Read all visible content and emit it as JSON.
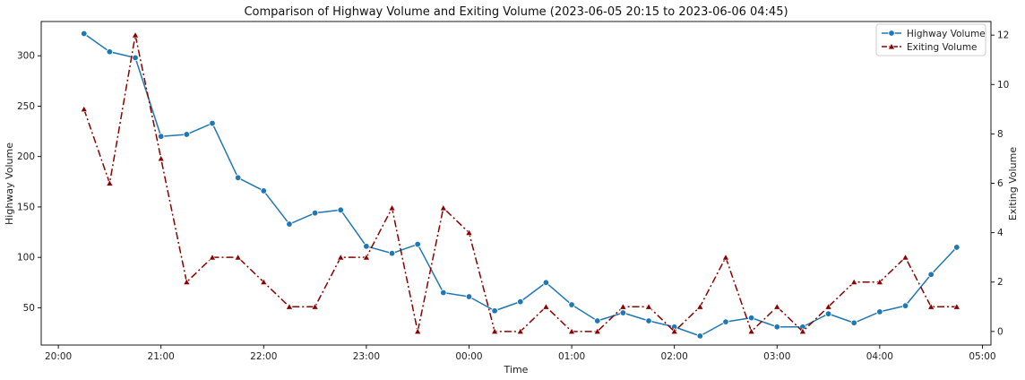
{
  "chart_data": {
    "type": "line",
    "title": "Comparison of Highway Volume and Exiting Volume (2023-06-05 20:15 to 2023-06-06 04:45)",
    "xlabel": "Time",
    "ylabel_left": "Highway Volume",
    "ylabel_right": "Exiting Volume",
    "x_ticks": [
      "20:00",
      "21:00",
      "22:00",
      "23:00",
      "00:00",
      "01:00",
      "02:00",
      "03:00",
      "04:00",
      "05:00"
    ],
    "y_left_ticks": [
      50,
      100,
      150,
      200,
      250,
      300
    ],
    "y_right_ticks": [
      0,
      2,
      4,
      6,
      8,
      10,
      12
    ],
    "xlim": [
      "2023-06-05 19:50",
      "2023-06-06 05:05"
    ],
    "ylim_left": [
      13,
      334
    ],
    "ylim_right": [
      -0.55,
      12.55
    ],
    "legend_position": "top-right",
    "grid": false,
    "x": [
      "2023-06-05 20:15",
      "2023-06-05 20:30",
      "2023-06-05 20:45",
      "2023-06-05 21:00",
      "2023-06-05 21:15",
      "2023-06-05 21:30",
      "2023-06-05 21:45",
      "2023-06-05 22:00",
      "2023-06-05 22:15",
      "2023-06-05 22:30",
      "2023-06-05 22:45",
      "2023-06-05 23:00",
      "2023-06-05 23:15",
      "2023-06-05 23:30",
      "2023-06-05 23:45",
      "2023-06-06 00:00",
      "2023-06-06 00:15",
      "2023-06-06 00:30",
      "2023-06-06 00:45",
      "2023-06-06 01:00",
      "2023-06-06 01:15",
      "2023-06-06 01:30",
      "2023-06-06 01:45",
      "2023-06-06 02:00",
      "2023-06-06 02:15",
      "2023-06-06 02:30",
      "2023-06-06 02:45",
      "2023-06-06 03:00",
      "2023-06-06 03:15",
      "2023-06-06 03:30",
      "2023-06-06 03:45",
      "2023-06-06 04:00",
      "2023-06-06 04:15",
      "2023-06-06 04:30",
      "2023-06-06 04:45"
    ],
    "series": [
      {
        "name": "Highway Volume",
        "axis": "left",
        "color": "#1f77b4",
        "marker": "circle",
        "line_style": "solid",
        "values": [
          322,
          304,
          298,
          220,
          222,
          233,
          179,
          166,
          133,
          144,
          147,
          111,
          104,
          113,
          65,
          61,
          47,
          56,
          75,
          53,
          37,
          45,
          37,
          31,
          22,
          36,
          40,
          31,
          31,
          44,
          35,
          46,
          52,
          83,
          110
        ]
      },
      {
        "name": "Exiting Volume",
        "axis": "right",
        "color": "#8b0000",
        "marker": "triangle",
        "line_style": "dash-dot",
        "values": [
          9,
          6,
          12,
          7,
          2,
          3,
          3,
          2,
          1,
          1,
          3,
          3,
          5,
          0,
          5,
          4,
          0,
          0,
          1,
          0,
          0,
          1,
          1,
          0,
          1,
          3,
          0,
          1,
          0,
          1,
          2,
          2,
          3,
          1,
          1
        ]
      }
    ]
  }
}
